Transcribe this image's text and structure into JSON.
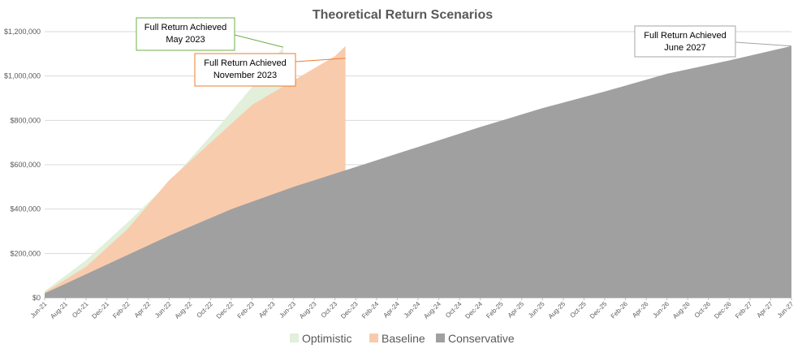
{
  "chart_data": {
    "type": "area",
    "title": "Theoretical Return Scenarios",
    "xlabel": "",
    "ylabel": "",
    "ylim": [
      0,
      1200000
    ],
    "yticks": [
      {
        "value": 0,
        "label": "$0"
      },
      {
        "value": 200000,
        "label": "$200,000"
      },
      {
        "value": 400000,
        "label": "$400,000"
      },
      {
        "value": 600000,
        "label": "$600,000"
      },
      {
        "value": 800000,
        "label": "$800,000"
      },
      {
        "value": 1000000,
        "label": "$1,000,000"
      },
      {
        "value": 1200000,
        "label": "$1,200,000"
      }
    ],
    "x_start": "Jun-21",
    "x_end": "Jun-27",
    "xticks": [
      "Jun-21",
      "Aug-21",
      "Oct-21",
      "Dec-21",
      "Feb-22",
      "Apr-22",
      "Jun-22",
      "Aug-22",
      "Oct-22",
      "Dec-22",
      "Feb-23",
      "Apr-23",
      "Jun-23",
      "Aug-23",
      "Oct-23",
      "Dec-23",
      "Feb-24",
      "Apr-24",
      "Jun-24",
      "Aug-24",
      "Oct-24",
      "Dec-24",
      "Feb-25",
      "Apr-25",
      "Jun-25",
      "Aug-25",
      "Oct-25",
      "Dec-25",
      "Feb-26",
      "Apr-26",
      "Jun-26",
      "Aug-26",
      "Oct-26",
      "Dec-26",
      "Feb-27",
      "Apr-27",
      "Jun-27"
    ],
    "grid": true,
    "legend_position": "bottom",
    "series": [
      {
        "name": "Optimistic",
        "color": "#e2efda",
        "points": [
          {
            "x": "Jun-21",
            "y": 30000
          },
          {
            "x": "Oct-21",
            "y": 170000
          },
          {
            "x": "Feb-22",
            "y": 340000
          },
          {
            "x": "Jun-22",
            "y": 520000
          },
          {
            "x": "Oct-22",
            "y": 730000
          },
          {
            "x": "Feb-23",
            "y": 950000
          },
          {
            "x": "May-23",
            "y": 1130000
          }
        ]
      },
      {
        "name": "Baseline",
        "color": "#f8cbad",
        "points": [
          {
            "x": "Jun-21",
            "y": 25000
          },
          {
            "x": "Oct-21",
            "y": 140000
          },
          {
            "x": "Feb-22",
            "y": 310000
          },
          {
            "x": "Jun-22",
            "y": 530000
          },
          {
            "x": "Oct-22",
            "y": 700000
          },
          {
            "x": "Feb-23",
            "y": 870000
          },
          {
            "x": "Jun-23",
            "y": 980000
          },
          {
            "x": "Oct-23",
            "y": 1090000
          },
          {
            "x": "Nov-23",
            "y": 1135000
          }
        ]
      },
      {
        "name": "Conservative",
        "color": "#a0a0a0",
        "points": [
          {
            "x": "Jun-21",
            "y": 20000
          },
          {
            "x": "Dec-21",
            "y": 150000
          },
          {
            "x": "Jun-22",
            "y": 280000
          },
          {
            "x": "Dec-22",
            "y": 400000
          },
          {
            "x": "Jun-23",
            "y": 500000
          },
          {
            "x": "Dec-23",
            "y": 590000
          },
          {
            "x": "Jun-24",
            "y": 680000
          },
          {
            "x": "Dec-24",
            "y": 770000
          },
          {
            "x": "Jun-25",
            "y": 855000
          },
          {
            "x": "Dec-25",
            "y": 930000
          },
          {
            "x": "Jun-26",
            "y": 1010000
          },
          {
            "x": "Dec-26",
            "y": 1070000
          },
          {
            "x": "Jun-27",
            "y": 1135000
          }
        ]
      }
    ],
    "annotations": [
      {
        "lines": [
          "Full Return Achieved",
          "May 2023"
        ],
        "border_color": "#70ad47",
        "target": {
          "x": "May-23",
          "y": 1130000
        }
      },
      {
        "lines": [
          "Full Return Achieved",
          "November 2023"
        ],
        "border_color": "#ed7d31",
        "target": {
          "x": "Nov-23",
          "y": 1080000
        }
      },
      {
        "lines": [
          "Full Return Achieved",
          "June 2027"
        ],
        "border_color": "#a5a5a5",
        "target": {
          "x": "Jun-27",
          "y": 1135000
        }
      }
    ]
  }
}
